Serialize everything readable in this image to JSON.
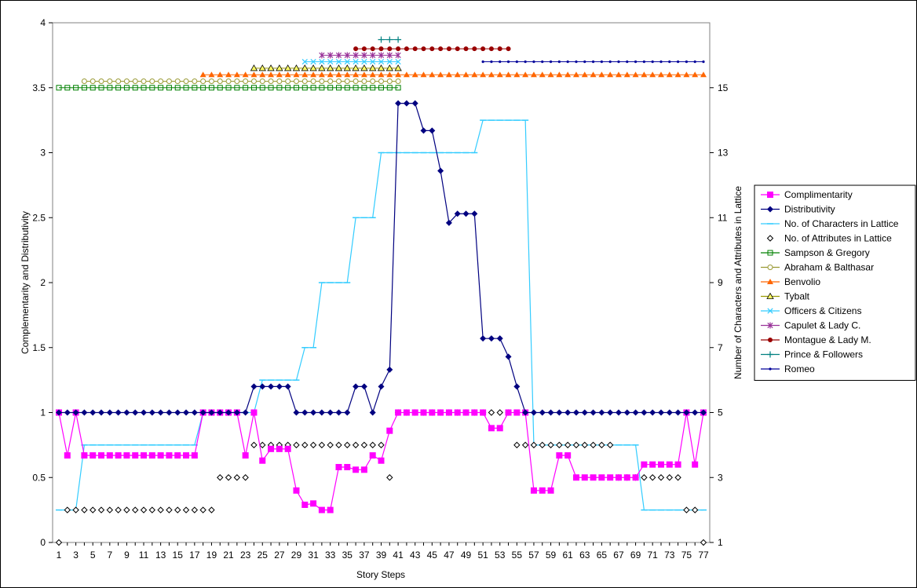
{
  "chart_data": {
    "type": "line",
    "xlabel": "Story Steps",
    "ylabel_left": "Complementarity and Distributivity",
    "ylabel_right": "Number of Characters and Attributes in Lattice",
    "x": [
      1,
      2,
      3,
      4,
      5,
      6,
      7,
      8,
      9,
      10,
      11,
      12,
      13,
      14,
      15,
      16,
      17,
      18,
      19,
      20,
      21,
      22,
      23,
      24,
      25,
      26,
      27,
      28,
      29,
      30,
      31,
      32,
      33,
      34,
      35,
      36,
      37,
      38,
      39,
      40,
      41,
      42,
      43,
      44,
      45,
      46,
      47,
      48,
      49,
      50,
      51,
      52,
      53,
      54,
      55,
      56,
      57,
      58,
      59,
      60,
      61,
      62,
      63,
      64,
      65,
      66,
      67,
      68,
      69,
      70,
      71,
      72,
      73,
      74,
      75,
      76,
      77
    ],
    "x_tick_labels": [
      "1",
      "3",
      "5",
      "7",
      "9",
      "11",
      "13",
      "15",
      "17",
      "19",
      "21",
      "23",
      "25",
      "27",
      "29",
      "31",
      "33",
      "35",
      "37",
      "39",
      "41",
      "43",
      "45",
      "47",
      "49",
      "51",
      "53",
      "55",
      "57",
      "59",
      "61",
      "63",
      "65",
      "67",
      "69",
      "71",
      "73",
      "75",
      "77"
    ],
    "ylim_left": [
      0,
      4
    ],
    "yticks_left": [
      "0",
      "0.5",
      "1",
      "1.5",
      "2",
      "2.5",
      "3",
      "3.5",
      "4"
    ],
    "ylim_right": [
      1,
      17
    ],
    "yticks_right": [
      "1",
      "3",
      "5",
      "7",
      "9",
      "11",
      "13",
      "15"
    ],
    "legend_position": "right",
    "grid": false,
    "series": [
      {
        "name": "Complimentarity",
        "axis": "left",
        "color": "#ff00ff",
        "marker": "square",
        "line": true,
        "values": [
          1,
          0.67,
          1,
          0.67,
          0.67,
          0.67,
          0.67,
          0.67,
          0.67,
          0.67,
          0.67,
          0.67,
          0.67,
          0.67,
          0.67,
          0.67,
          0.67,
          1,
          1,
          1,
          1,
          1,
          0.67,
          1,
          0.63,
          0.72,
          0.72,
          0.72,
          0.4,
          0.29,
          0.3,
          0.25,
          0.25,
          0.58,
          0.58,
          0.56,
          0.56,
          0.67,
          0.63,
          0.86,
          1,
          1,
          1,
          1,
          1,
          1,
          1,
          1,
          1,
          1,
          1,
          0.88,
          0.88,
          1,
          1,
          1,
          0.4,
          0.4,
          0.4,
          0.67,
          0.67,
          0.5,
          0.5,
          0.5,
          0.5,
          0.5,
          0.5,
          0.5,
          0.5,
          0.6,
          0.6,
          0.6,
          0.6,
          0.6,
          1,
          0.6,
          1
        ]
      },
      {
        "name": "Distributivity",
        "axis": "left",
        "color": "#000080",
        "marker": "diamond",
        "line": true,
        "values": [
          1,
          1,
          1,
          1,
          1,
          1,
          1,
          1,
          1,
          1,
          1,
          1,
          1,
          1,
          1,
          1,
          1,
          1,
          1,
          1,
          1,
          1,
          1,
          1.2,
          1.2,
          1.2,
          1.2,
          1.2,
          1,
          1,
          1,
          1,
          1,
          1,
          1,
          1.2,
          1.2,
          1,
          1.2,
          1.33,
          3.38,
          3.38,
          3.38,
          3.17,
          3.17,
          2.86,
          2.46,
          2.53,
          2.53,
          2.53,
          1.57,
          1.57,
          1.57,
          1.43,
          1.2,
          1,
          1,
          1,
          1,
          1,
          1,
          1,
          1,
          1,
          1,
          1,
          1,
          1,
          1,
          1,
          1,
          1,
          1,
          1,
          1,
          1,
          1
        ]
      },
      {
        "name": "No. of Characters in Lattice",
        "axis": "right",
        "color": "#33ccff",
        "marker": "dash",
        "line": true,
        "values": [
          2,
          2,
          2,
          4,
          4,
          4,
          4,
          4,
          4,
          4,
          4,
          4,
          4,
          4,
          4,
          4,
          4,
          5,
          5,
          5,
          5,
          5,
          5,
          5,
          6,
          6,
          6,
          6,
          6,
          7,
          7,
          9,
          9,
          9,
          9,
          11,
          11,
          11,
          13,
          13,
          13,
          13,
          13,
          13,
          13,
          13,
          13,
          13,
          13,
          13,
          14,
          14,
          14,
          14,
          14,
          14,
          4,
          4,
          4,
          4,
          4,
          4,
          4,
          4,
          4,
          4,
          4,
          4,
          4,
          2,
          2,
          2,
          2,
          2,
          2,
          2,
          2
        ]
      },
      {
        "name": "No. of Attributes in Lattice",
        "axis": "right",
        "color": "#000000",
        "marker": "open-diamond",
        "line": false,
        "values": [
          1,
          2,
          2,
          2,
          2,
          2,
          2,
          2,
          2,
          2,
          2,
          2,
          2,
          2,
          2,
          2,
          2,
          2,
          2,
          3,
          3,
          3,
          3,
          4,
          4,
          4,
          4,
          4,
          4,
          4,
          4,
          4,
          4,
          4,
          4,
          4,
          4,
          4,
          4,
          3,
          5,
          5,
          5,
          5,
          5,
          5,
          5,
          5,
          5,
          5,
          5,
          5,
          5,
          5,
          4,
          4,
          4,
          4,
          4,
          4,
          4,
          4,
          4,
          4,
          4,
          4,
          3,
          3,
          3,
          3,
          3,
          3,
          3,
          3,
          2,
          2,
          1
        ]
      }
    ],
    "presence": [
      {
        "name": "Sampson & Gregory",
        "y": 3.5,
        "start": 1,
        "end": 41,
        "color": "#008000",
        "marker": "open-square"
      },
      {
        "name": "Abraham & Balthasar",
        "y": 3.55,
        "start": 4,
        "end": 41,
        "color": "#999933",
        "marker": "open-circle"
      },
      {
        "name": "Benvolio",
        "y": 3.6,
        "start": 18,
        "end": 77,
        "color": "#ff6600",
        "marker": "triangle"
      },
      {
        "name": "Tybalt",
        "y": 3.65,
        "start": 24,
        "end": 41,
        "color": "#999900",
        "marker": "open-triangle"
      },
      {
        "name": "Officers & Citizens",
        "y": 3.7,
        "start": 30,
        "end": 41,
        "color": "#33ccff",
        "marker": "x"
      },
      {
        "name": "Capulet & Lady C.",
        "y": 3.75,
        "start": 32,
        "end": 41,
        "color": "#993399",
        "marker": "star"
      },
      {
        "name": "Montague & Lady M.",
        "y": 3.8,
        "start": 36,
        "end": 54,
        "color": "#990000",
        "marker": "circle"
      },
      {
        "name": "Prince & Followers",
        "y": 3.87,
        "start": 39,
        "end": 41,
        "color": "#008080",
        "marker": "plus"
      },
      {
        "name": "Romeo",
        "y": 3.7,
        "start": 51,
        "end": 77,
        "color": "#000099",
        "marker": "dot"
      }
    ]
  }
}
